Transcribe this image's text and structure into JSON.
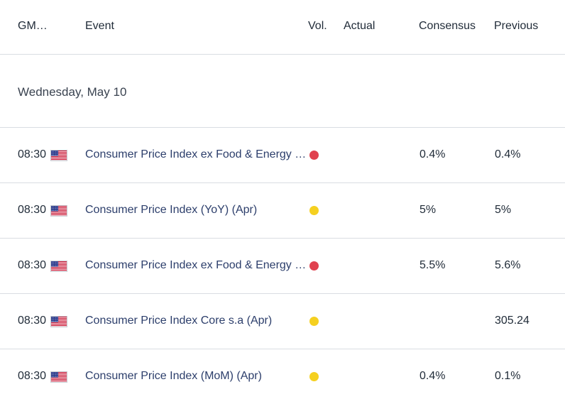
{
  "header": {
    "time": "GM…",
    "event": "Event",
    "vol": "Vol.",
    "actual": "Actual",
    "consensus": "Consensus",
    "previous": "Previous"
  },
  "day": "Wednesday, May 10",
  "colors": {
    "high_impact": "#e0424f",
    "medium_impact": "#f5d020",
    "event_text": "#2c3e6b"
  },
  "rows": [
    {
      "time": "08:30",
      "flag": "us-flag-icon",
      "event": "Consumer Price Index ex Food & Energy (MoM) (Apr)",
      "impact": "high",
      "actual": "",
      "consensus": "0.4%",
      "previous": "0.4%"
    },
    {
      "time": "08:30",
      "flag": "us-flag-icon",
      "event": "Consumer Price Index (YoY) (Apr)",
      "impact": "medium",
      "actual": "",
      "consensus": "5%",
      "previous": "5%"
    },
    {
      "time": "08:30",
      "flag": "us-flag-icon",
      "event": "Consumer Price Index ex Food & Energy (YoY) (Apr)",
      "impact": "high",
      "actual": "",
      "consensus": "5.5%",
      "previous": "5.6%"
    },
    {
      "time": "08:30",
      "flag": "us-flag-icon",
      "event": "Consumer Price Index Core s.a (Apr)",
      "impact": "medium",
      "actual": "",
      "consensus": "",
      "previous": "305.24"
    },
    {
      "time": "08:30",
      "flag": "us-flag-icon",
      "event": "Consumer Price Index (MoM) (Apr)",
      "impact": "medium",
      "actual": "",
      "consensus": "0.4%",
      "previous": "0.1%"
    }
  ]
}
